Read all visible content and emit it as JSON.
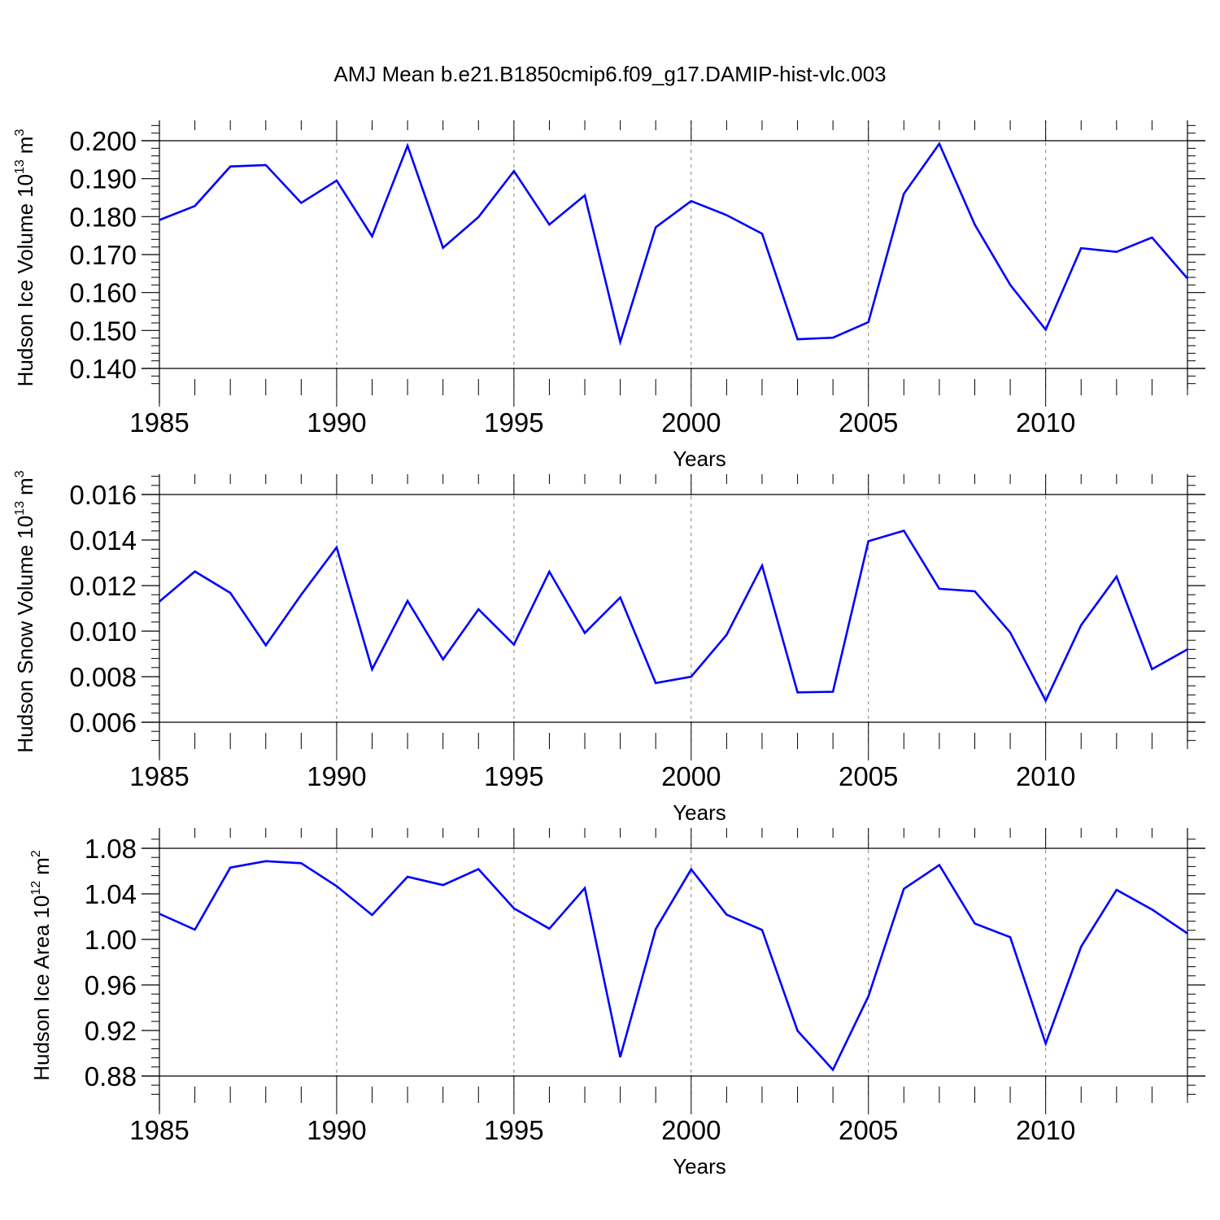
{
  "title": "AMJ Mean b.e21.B1850cmip6.f09_g17.DAMIP-hist-vlc.003",
  "colors": {
    "series": "#0000ff",
    "axis": "#000000",
    "grid": "#808080"
  },
  "chart_data": [
    {
      "type": "line",
      "ylabel": "Hudson Ice Volume",
      "ylabel_unit_base": "10",
      "ylabel_unit_exp": "13",
      "ylabel_unit": "m",
      "ylabel_unit_power": "3",
      "xlabel": "Years",
      "xlim": [
        1985,
        2014
      ],
      "ylim": [
        0.14,
        0.2056
      ],
      "x_ticks": [
        "1985",
        "1990",
        "1995",
        "2000",
        "2005",
        "2010"
      ],
      "y_ticks": [
        "0.140",
        "0.150",
        "0.160",
        "0.170",
        "0.180",
        "0.190",
        "0.200"
      ],
      "grid": "vertical dashed at major x ticks",
      "x": [
        1985,
        1986,
        1987,
        1988,
        1989,
        1990,
        1991,
        1992,
        1993,
        1994,
        1995,
        1996,
        1997,
        1998,
        1999,
        2000,
        2001,
        2002,
        2003,
        2004,
        2005,
        2006,
        2007,
        2008,
        2009,
        2010,
        2011,
        2012,
        2013,
        2014
      ],
      "values": [
        0.1791,
        0.1828,
        0.1932,
        0.1936,
        0.1836,
        0.1895,
        0.1748,
        0.1987,
        0.1718,
        0.1799,
        0.192,
        0.1779,
        0.1856,
        0.147,
        0.1772,
        0.1841,
        0.1804,
        0.1755,
        0.1477,
        0.1481,
        0.1522,
        0.186,
        0.1992,
        0.1779,
        0.162,
        0.1502,
        0.1717,
        0.1707,
        0.1745,
        0.1637
      ]
    },
    {
      "type": "line",
      "ylabel": "Hudson Snow Volume",
      "ylabel_unit_base": "10",
      "ylabel_unit_exp": "13",
      "ylabel_unit": "m",
      "ylabel_unit_power": "3",
      "xlabel": "Years",
      "xlim": [
        1985,
        2014
      ],
      "ylim": [
        0.006,
        0.0169
      ],
      "x_ticks": [
        "1985",
        "1990",
        "1995",
        "2000",
        "2005",
        "2010"
      ],
      "y_ticks": [
        "0.006",
        "0.008",
        "0.010",
        "0.012",
        "0.014",
        "0.016"
      ],
      "grid": "vertical dashed at major x ticks",
      "x": [
        1985,
        1986,
        1987,
        1988,
        1989,
        1990,
        1991,
        1992,
        1993,
        1994,
        1995,
        1996,
        1997,
        1998,
        1999,
        2000,
        2001,
        2002,
        2003,
        2004,
        2005,
        2006,
        2007,
        2008,
        2009,
        2010,
        2011,
        2012,
        2013,
        2014
      ],
      "values": [
        0.0113,
        0.01262,
        0.01168,
        0.00938,
        0.0116,
        0.01368,
        0.00832,
        0.01133,
        0.00876,
        0.01096,
        0.00941,
        0.01261,
        0.00992,
        0.01148,
        0.00772,
        0.008,
        0.00984,
        0.01288,
        0.00731,
        0.00734,
        0.01395,
        0.01441,
        0.01186,
        0.01175,
        0.00994,
        0.00695,
        0.01026,
        0.0124,
        0.00833,
        0.0092
      ]
    },
    {
      "type": "line",
      "ylabel": "Hudson Ice Area",
      "ylabel_unit_base": "10",
      "ylabel_unit_exp": "12",
      "ylabel_unit": "m",
      "ylabel_unit_power": "2",
      "xlabel": "Years",
      "xlim": [
        1985,
        2014
      ],
      "ylim": [
        0.871,
        1.0892
      ],
      "x_ticks": [
        "1985",
        "1990",
        "1995",
        "2000",
        "2005",
        "2010"
      ],
      "y_ticks": [
        "0.88",
        "0.92",
        "0.96",
        "1.00",
        "1.04",
        "1.08"
      ],
      "grid": "vertical dashed at major x ticks",
      "x": [
        1985,
        1986,
        1987,
        1988,
        1989,
        1990,
        1991,
        1992,
        1993,
        1994,
        1995,
        1996,
        1997,
        1998,
        1999,
        2000,
        2001,
        2002,
        2003,
        2004,
        2005,
        2006,
        2007,
        2008,
        2009,
        2010,
        2011,
        2012,
        2013,
        2014
      ],
      "values": [
        1.0225,
        1.0086,
        1.0631,
        1.0687,
        1.0669,
        1.0468,
        1.0214,
        1.055,
        1.0477,
        1.0617,
        1.0272,
        1.0094,
        1.0451,
        0.8967,
        1.0091,
        1.0616,
        1.0217,
        1.0083,
        0.9197,
        0.8855,
        0.95,
        1.0444,
        1.0653,
        1.0139,
        1.0019,
        0.9085,
        0.9936,
        1.0435,
        1.0263,
        1.0052
      ]
    }
  ]
}
